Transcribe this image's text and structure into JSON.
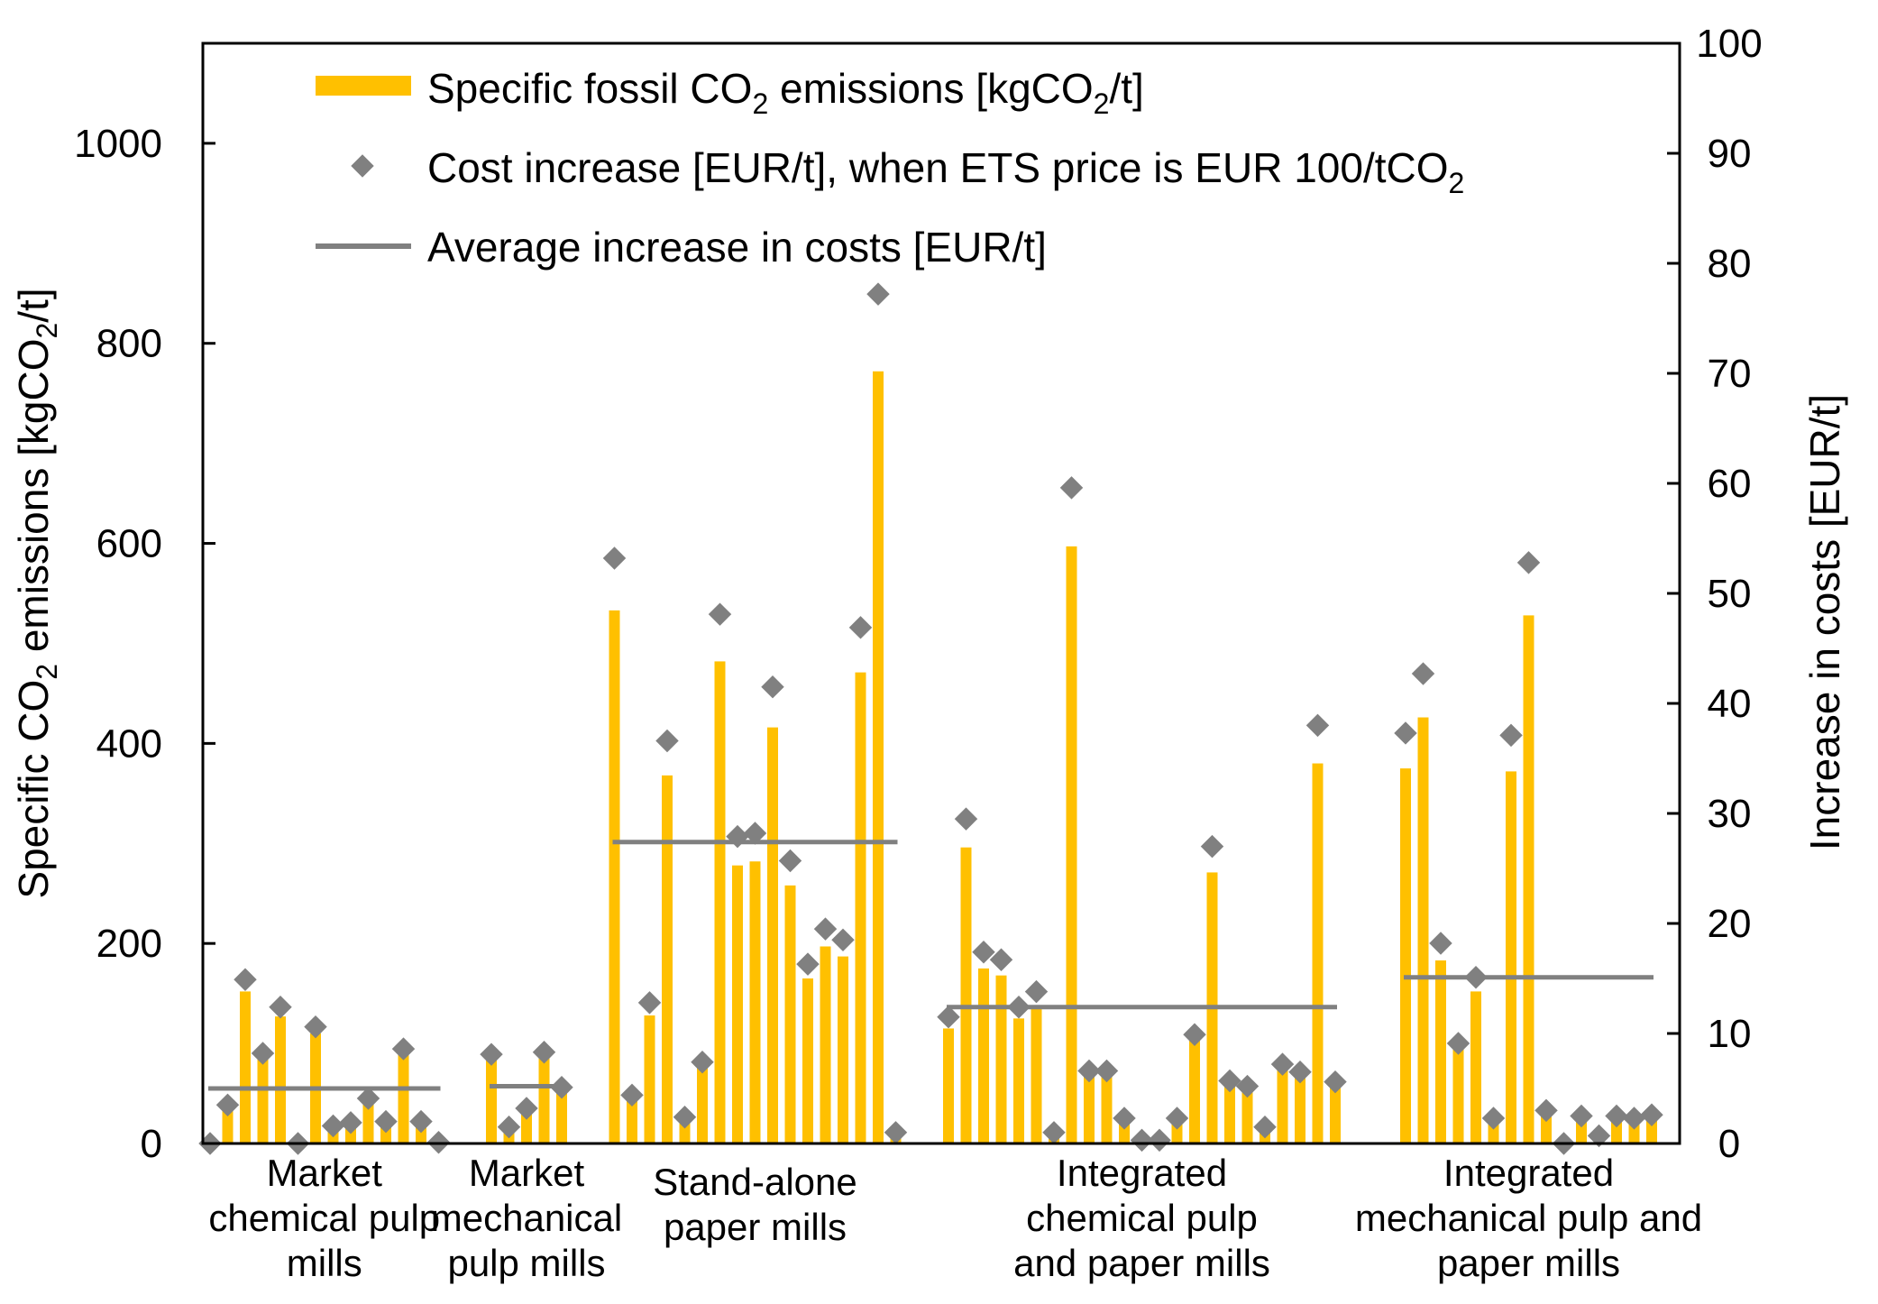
{
  "chart_data": {
    "type": "bar",
    "left_axis": {
      "label": "Specific CO",
      "label_sub": "2",
      "label_tail": " emissions [kgCO",
      "label_sub2": "2",
      "label_end": "/t]",
      "ylim": [
        0,
        1100
      ],
      "ticks": [
        0,
        200,
        400,
        600,
        800,
        1000
      ]
    },
    "right_axis": {
      "label": "Increase in costs [EUR/t]",
      "ylim": [
        0,
        100
      ],
      "ticks": [
        0,
        10,
        20,
        30,
        40,
        50,
        60,
        70,
        80,
        90,
        100
      ]
    },
    "legend": {
      "bars_main": "Specific fossil CO",
      "bars_sub": "2",
      "bars_mid": " emissions [kgCO",
      "bars_sub2": "2",
      "bars_end": "/t]",
      "markers_main": "Cost increase [EUR/t], when ETS price is EUR 100/tCO",
      "markers_sub": "2",
      "line": "Average increase in costs [EUR/t]"
    },
    "colors": {
      "bar": "#FFC000",
      "marker": "#808080",
      "line": "#808080",
      "axis": "#000000"
    },
    "groups": [
      {
        "label_lines": [
          "Market",
          "chemical pulp",
          "mills"
        ],
        "start_slot": 0,
        "bars": [
          0,
          38,
          152,
          90,
          127,
          0,
          110,
          17,
          20,
          42,
          21,
          93,
          22,
          1
        ],
        "cost": [
          0,
          3.5,
          14.9,
          8.2,
          12.4,
          0,
          10.6,
          1.6,
          1.9,
          4.1,
          2.0,
          8.6,
          2.0,
          0.1
        ],
        "average": 5.0
      },
      {
        "label_lines": [
          "Market",
          "mechanical",
          "pulp mills"
        ],
        "start_slot": 16,
        "bars": [
          88,
          17,
          33,
          92,
          55
        ],
        "cost": [
          8.1,
          1.5,
          3.2,
          8.3,
          5.1
        ],
        "average": 5.2
      },
      {
        "label_lines": [
          "Stand-alone",
          "paper mills"
        ],
        "start_slot": 23,
        "bars": [
          533,
          47,
          128,
          368,
          26,
          82,
          482,
          278,
          282,
          416,
          258,
          165,
          197,
          187,
          471,
          772,
          11
        ],
        "cost": [
          53.2,
          4.4,
          12.8,
          36.6,
          2.4,
          7.4,
          48.1,
          27.9,
          28.2,
          41.5,
          25.7,
          16.3,
          19.5,
          18.5,
          46.9,
          77.2,
          1.0
        ],
        "average": 27.4
      },
      {
        "label_lines": [
          "Integrated",
          "chemical pulp",
          "and paper mills"
        ],
        "start_slot": 42,
        "bars": [
          115,
          296,
          175,
          168,
          125,
          138,
          10,
          597,
          73,
          72,
          24,
          3,
          3,
          24,
          108,
          271,
          62,
          52,
          17,
          79,
          72,
          380,
          61
        ],
        "cost": [
          11.5,
          29.5,
          17.4,
          16.7,
          12.4,
          13.8,
          1.0,
          59.6,
          6.6,
          6.6,
          2.3,
          0.3,
          0.3,
          2.3,
          9.9,
          27.0,
          5.7,
          5.2,
          1.5,
          7.2,
          6.5,
          38.0,
          5.6
        ],
        "average": 12.4
      },
      {
        "label_lines": [
          "Integrated",
          "mechanical pulp and",
          "paper mills"
        ],
        "start_slot": 68,
        "bars": [
          375,
          426,
          183,
          100,
          152,
          24,
          372,
          528,
          33,
          0,
          27,
          8,
          28,
          25,
          30
        ],
        "cost": [
          37.3,
          42.7,
          18.2,
          9.1,
          15.1,
          2.3,
          37.1,
          52.8,
          3.0,
          0,
          2.5,
          0.7,
          2.5,
          2.3,
          2.6
        ],
        "average": 15.1
      }
    ]
  }
}
